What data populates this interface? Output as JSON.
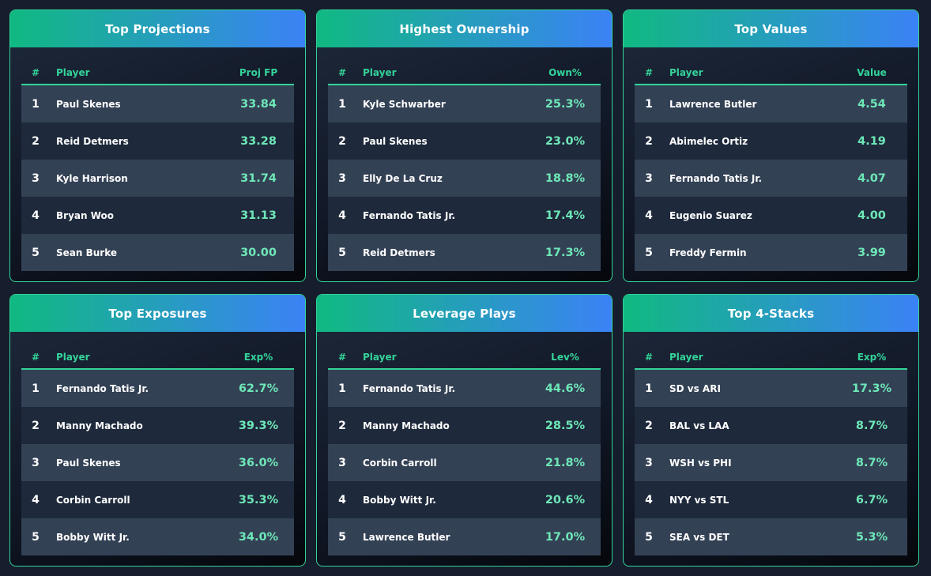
{
  "colors": {
    "accent": "#34d399",
    "header_gradient_start": "#10b981",
    "header_gradient_end": "#3b82f6",
    "value_text": "#6ee7b7",
    "row_odd": "#334155",
    "row_even": "#1e293b",
    "page_bg": "#161e2d"
  },
  "cards": [
    {
      "title": "Top Projections",
      "headers": {
        "num": "#",
        "player": "Player",
        "value": "Proj FP"
      },
      "rows": [
        {
          "num": "1",
          "player": "Paul Skenes",
          "value": "33.84"
        },
        {
          "num": "2",
          "player": "Reid Detmers",
          "value": "33.28"
        },
        {
          "num": "3",
          "player": "Kyle Harrison",
          "value": "31.74"
        },
        {
          "num": "4",
          "player": "Bryan Woo",
          "value": "31.13"
        },
        {
          "num": "5",
          "player": "Sean Burke",
          "value": "30.00"
        }
      ]
    },
    {
      "title": "Highest Ownership",
      "headers": {
        "num": "#",
        "player": "Player",
        "value": "Own%"
      },
      "rows": [
        {
          "num": "1",
          "player": "Kyle Schwarber",
          "value": "25.3%"
        },
        {
          "num": "2",
          "player": "Paul Skenes",
          "value": "23.0%"
        },
        {
          "num": "3",
          "player": "Elly De La Cruz",
          "value": "18.8%"
        },
        {
          "num": "4",
          "player": "Fernando Tatis Jr.",
          "value": "17.4%"
        },
        {
          "num": "5",
          "player": "Reid Detmers",
          "value": "17.3%"
        }
      ]
    },
    {
      "title": "Top Values",
      "headers": {
        "num": "#",
        "player": "Player",
        "value": "Value"
      },
      "rows": [
        {
          "num": "1",
          "player": "Lawrence Butler",
          "value": "4.54"
        },
        {
          "num": "2",
          "player": "Abimelec Ortiz",
          "value": "4.19"
        },
        {
          "num": "3",
          "player": "Fernando Tatis Jr.",
          "value": "4.07"
        },
        {
          "num": "4",
          "player": "Eugenio Suarez",
          "value": "4.00"
        },
        {
          "num": "5",
          "player": "Freddy Fermin",
          "value": "3.99"
        }
      ]
    },
    {
      "title": "Top Exposures",
      "headers": {
        "num": "#",
        "player": "Player",
        "value": "Exp%"
      },
      "rows": [
        {
          "num": "1",
          "player": "Fernando Tatis Jr.",
          "value": "62.7%"
        },
        {
          "num": "2",
          "player": "Manny Machado",
          "value": "39.3%"
        },
        {
          "num": "3",
          "player": "Paul Skenes",
          "value": "36.0%"
        },
        {
          "num": "4",
          "player": "Corbin Carroll",
          "value": "35.3%"
        },
        {
          "num": "5",
          "player": "Bobby Witt Jr.",
          "value": "34.0%"
        }
      ]
    },
    {
      "title": "Leverage Plays",
      "headers": {
        "num": "#",
        "player": "Player",
        "value": "Lev%"
      },
      "rows": [
        {
          "num": "1",
          "player": "Fernando Tatis Jr.",
          "value": "44.6%"
        },
        {
          "num": "2",
          "player": "Manny Machado",
          "value": "28.5%"
        },
        {
          "num": "3",
          "player": "Corbin Carroll",
          "value": "21.8%"
        },
        {
          "num": "4",
          "player": "Bobby Witt Jr.",
          "value": "20.6%"
        },
        {
          "num": "5",
          "player": "Lawrence Butler",
          "value": "17.0%"
        }
      ]
    },
    {
      "title": "Top 4-Stacks",
      "headers": {
        "num": "#",
        "player": "Player",
        "value": "Exp%"
      },
      "rows": [
        {
          "num": "1",
          "player": "SD vs ARI",
          "value": "17.3%"
        },
        {
          "num": "2",
          "player": "BAL vs LAA",
          "value": "8.7%"
        },
        {
          "num": "3",
          "player": "WSH vs PHI",
          "value": "8.7%"
        },
        {
          "num": "4",
          "player": "NYY vs STL",
          "value": "6.7%"
        },
        {
          "num": "5",
          "player": "SEA vs DET",
          "value": "5.3%"
        }
      ]
    }
  ]
}
